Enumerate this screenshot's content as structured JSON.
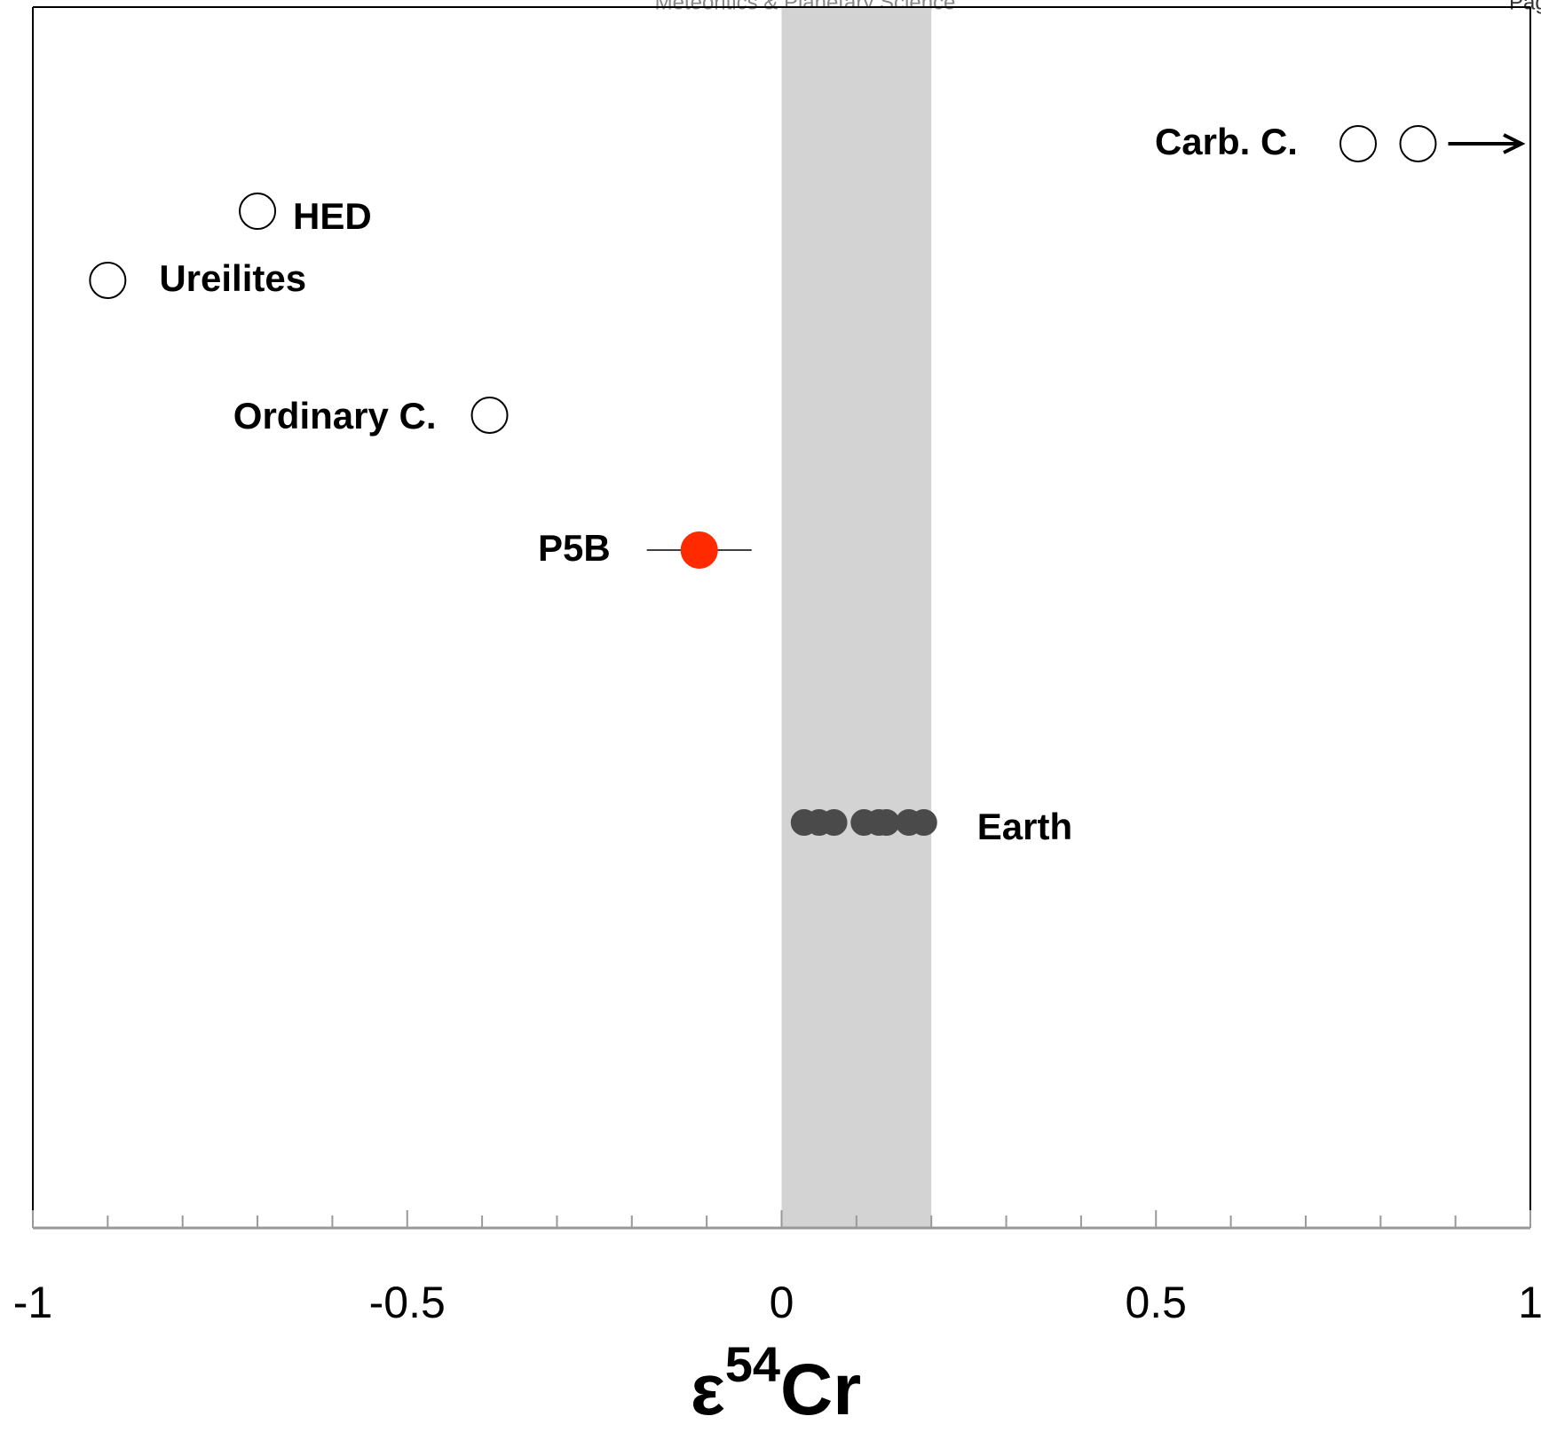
{
  "header": {
    "journal": "Meteoritics & Planetary Science",
    "page": "Pag"
  },
  "chart_data": {
    "type": "scatter",
    "xlabel_parts": [
      "ε",
      "54",
      "Cr"
    ],
    "xlim": [
      -1,
      1
    ],
    "xticks": [
      -1,
      -0.5,
      0,
      0.5,
      1
    ],
    "xminorticks": [
      -0.9,
      -0.8,
      -0.7,
      -0.6,
      -0.4,
      -0.3,
      -0.2,
      -0.1,
      0.1,
      0.2,
      0.3,
      0.4,
      0.6,
      0.7,
      0.8,
      0.9
    ],
    "band": [
      0,
      0.2
    ],
    "band_color": "#d3d3d3",
    "series": [
      {
        "name": "Carb. C.",
        "color": "#ffffff",
        "x": [
          0.77,
          0.85
        ]
      },
      {
        "name": "HED",
        "color": "#ffffff",
        "x": [
          -0.7
        ]
      },
      {
        "name": "Ureilites",
        "color": "#ffffff",
        "x": [
          -0.9
        ]
      },
      {
        "name": "Ordinary C.",
        "color": "#ffffff",
        "x": [
          -0.39
        ]
      },
      {
        "name": "P5B",
        "color": "#ff2a00",
        "x": [
          -0.11
        ],
        "error": [
          0.07
        ]
      },
      {
        "name": "Earth",
        "color": "#4a4a4a",
        "x": [
          0.03,
          0.05,
          0.07,
          0.11,
          0.13,
          0.14,
          0.17,
          0.19
        ]
      }
    ]
  }
}
